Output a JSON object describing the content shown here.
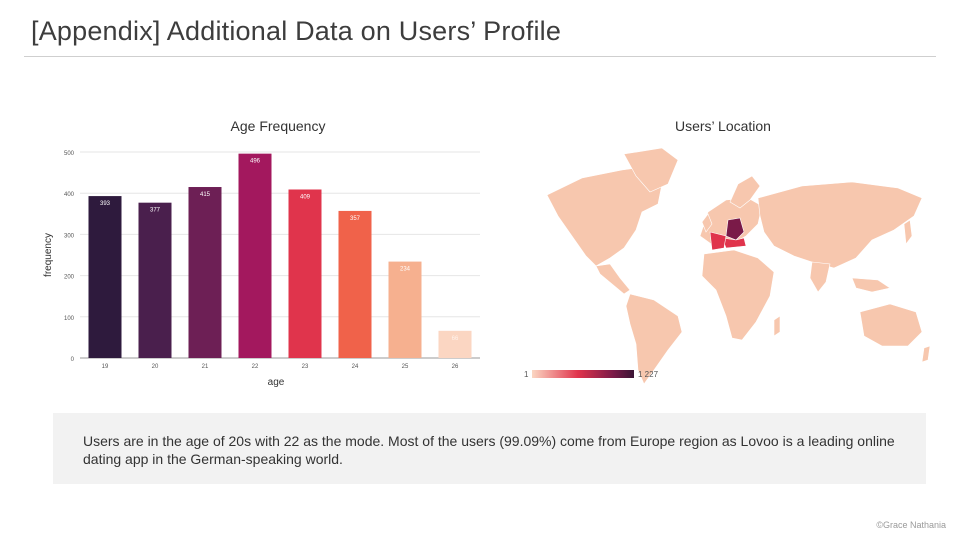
{
  "page": {
    "title": "[Appendix] Additional Data on Users’ Profile",
    "summary": "Users are in the age of 20s with 22 as the mode. Most of the users (99.09%) come from Europe region as Lovoo is a leading online dating app in the German-speaking world.",
    "credit": "©Grace Nathania"
  },
  "chart_data": [
    {
      "type": "bar",
      "title": "Age Frequency",
      "xlabel": "age",
      "ylabel": "frequency",
      "categories": [
        "19",
        "20",
        "21",
        "22",
        "23",
        "24",
        "25",
        "26"
      ],
      "values": [
        393,
        377,
        415,
        496,
        409,
        357,
        234,
        66
      ],
      "data_labels": [
        "393",
        "377",
        "415",
        "496",
        "409",
        "357",
        "234",
        "66"
      ],
      "ylim": [
        0,
        500
      ],
      "yticks": [
        0,
        100,
        200,
        300,
        400,
        500
      ],
      "grid": true,
      "bar_colors": [
        "#2e1a3d",
        "#4a1f4d",
        "#6d1f55",
        "#a3185e",
        "#e0344c",
        "#f0624a",
        "#f6b08f",
        "#fbd6c2"
      ],
      "label_colors": [
        "#ffffff",
        "#ffffff",
        "#ffffff",
        "#ffffff",
        "#ffffff",
        "#ffffff",
        "#ffffff",
        "#fff3ec"
      ]
    },
    {
      "type": "map",
      "title": "Users’ Location",
      "legend": {
        "min": "1",
        "max": "1 227",
        "colors": [
          "#fbd6c2",
          "#e0344c",
          "#7a1a48",
          "#3a1535"
        ]
      },
      "land_color": "#f7c7ae",
      "highlight_colors": {
        "germany": "#7a1a48",
        "neighbors": "#e0344c"
      }
    }
  ]
}
